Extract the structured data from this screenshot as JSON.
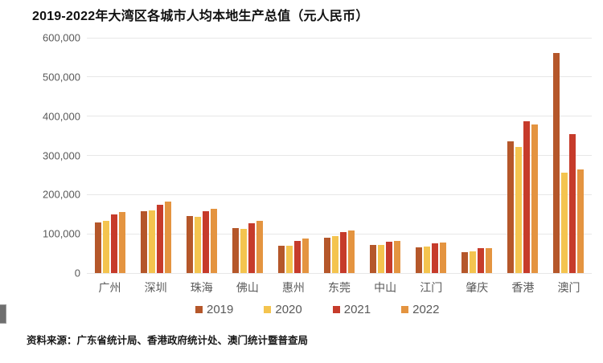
{
  "title": "2019-2022年大湾区各城市人均本地生产总值（元人民币）",
  "source": "资料来源：广东省统计局、香港政府统计处、澳门统计暨普查局",
  "chart_data": {
    "type": "bar",
    "title": "2019-2022年大湾区各城市人均本地生产总值（元人民币）",
    "categories": [
      "广州",
      "深圳",
      "珠海",
      "佛山",
      "惠州",
      "东莞",
      "中山",
      "江门",
      "肇庆",
      "香港",
      "澳门"
    ],
    "series": [
      {
        "name": "2019",
        "color": "#B5572A",
        "values": [
          130000,
          158000,
          146000,
          114000,
          69000,
          90000,
          71000,
          65000,
          53000,
          335000,
          562000
        ]
      },
      {
        "name": "2020",
        "color": "#F4C44F",
        "values": [
          134000,
          160000,
          143000,
          112000,
          70000,
          94000,
          72000,
          67000,
          55000,
          321000,
          257000
        ]
      },
      {
        "name": "2021",
        "color": "#C63B2B",
        "values": [
          150000,
          174000,
          157000,
          127000,
          81000,
          104000,
          80000,
          75000,
          63000,
          387000,
          354000
        ]
      },
      {
        "name": "2022",
        "color": "#E49440",
        "values": [
          156000,
          183000,
          163000,
          133000,
          88000,
          108000,
          82000,
          78000,
          64000,
          379000,
          264000
        ]
      }
    ],
    "xlabel": "",
    "ylabel": "",
    "ylim": [
      0,
      600000
    ],
    "ytick_interval": 100000,
    "ytick_labels": [
      "0",
      "100,000",
      "200,000",
      "300,000",
      "400,000",
      "500,000",
      "600,000"
    ],
    "grid": true,
    "legend_position": "bottom"
  }
}
